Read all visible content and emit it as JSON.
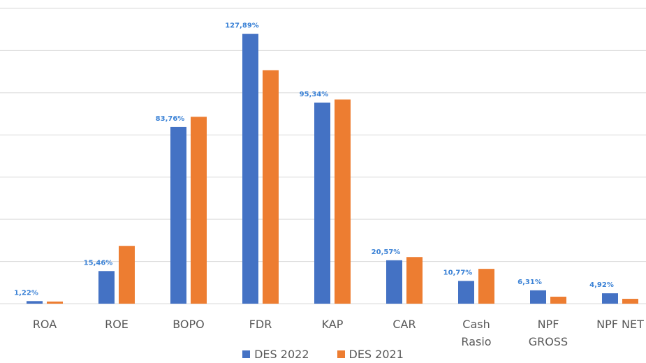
{
  "chart_data": {
    "type": "bar",
    "categories": [
      "ROA",
      "ROE",
      "BOPO",
      "FDR",
      "KAP",
      "CAR",
      "Cash Rasio",
      "NPF GROSS",
      "NPF NET"
    ],
    "series": [
      {
        "name": "DES 2022",
        "color": "#4472c4",
        "values": [
          1.22,
          15.46,
          83.76,
          127.89,
          95.34,
          20.57,
          10.77,
          6.31,
          4.92
        ],
        "value_labels": [
          "1,22%",
          "15,46%",
          "83,76%",
          "127,89%",
          "95,34%",
          "20,57%",
          "10,77%",
          "6,31%",
          "4,92%"
        ]
      },
      {
        "name": "DES 2021",
        "color": "#ed7d31",
        "values": [
          1.0,
          27.4,
          88.6,
          110.7,
          96.8,
          22.1,
          16.5,
          3.3,
          2.3
        ]
      }
    ],
    "ylim": [
      0,
      140
    ],
    "yticks": [
      0,
      20,
      40,
      60,
      80,
      100,
      120,
      140
    ],
    "grid": true
  }
}
